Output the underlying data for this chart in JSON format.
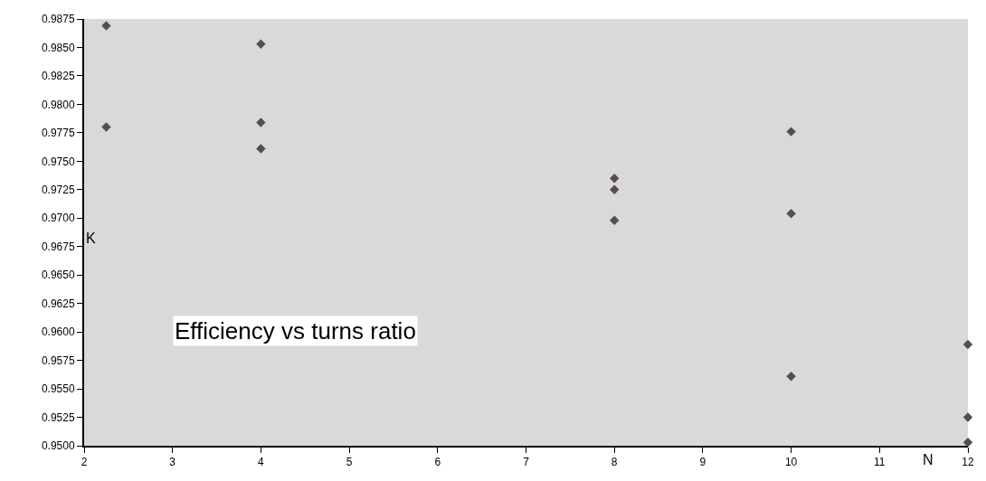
{
  "chart_data": {
    "type": "scatter",
    "title": "Efficiency vs turns ratio",
    "xlabel": "N",
    "ylabel": "K",
    "x": [
      2.25,
      2.25,
      4,
      4,
      4,
      8,
      8,
      8,
      10,
      10,
      10,
      12,
      12,
      12
    ],
    "values": [
      0.9869,
      0.978,
      0.9853,
      0.9784,
      0.9761,
      0.9735,
      0.9725,
      0.9698,
      0.9776,
      0.9704,
      0.9561,
      0.9589,
      0.9525,
      0.9503
    ],
    "color": "#5a4a55",
    "marker": "diamond",
    "xlim": [
      2,
      12
    ],
    "xticks": [
      2,
      3,
      4,
      5,
      6,
      7,
      8,
      9,
      10,
      11,
      12
    ],
    "ylim": [
      0.95,
      0.9875
    ],
    "yticks": [
      {
        "value": 0.95,
        "label": "0.9500"
      },
      {
        "value": 0.9525,
        "label": "0.9525"
      },
      {
        "value": 0.955,
        "label": "0.9550"
      },
      {
        "value": 0.9575,
        "label": "0.9575"
      },
      {
        "value": 0.96,
        "label": "0.9600"
      },
      {
        "value": 0.9625,
        "label": "0.9625"
      },
      {
        "value": 0.965,
        "label": "0.9650"
      },
      {
        "value": 0.9675,
        "label": "0.9675"
      },
      {
        "value": 0.97,
        "label": "0.9700"
      },
      {
        "value": 0.9725,
        "label": "0.9725"
      },
      {
        "value": 0.975,
        "label": "0.9750"
      },
      {
        "value": 0.9775,
        "label": "0.9775"
      },
      {
        "value": 0.98,
        "label": "0.9800"
      },
      {
        "value": 0.9825,
        "label": "0.9825"
      },
      {
        "value": 0.985,
        "label": "0.9850"
      },
      {
        "value": 0.9875,
        "label": "0.9875"
      }
    ]
  }
}
